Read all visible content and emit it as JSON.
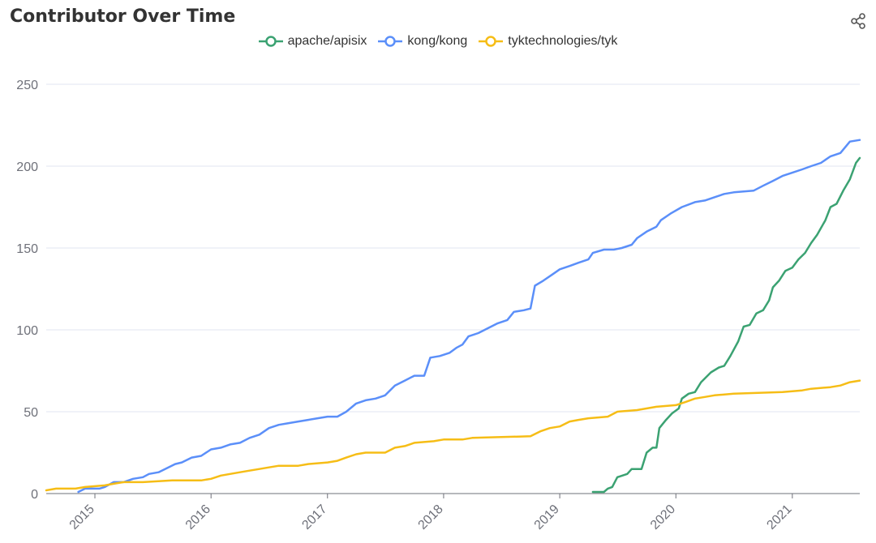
{
  "title": "Contributor Over Time",
  "share_icon": "share-icon",
  "chart_data": {
    "type": "line",
    "title": "Contributor Over Time",
    "xlabel": "",
    "ylabel": "",
    "ylim": [
      0,
      250
    ],
    "xlim": [
      "2014-08-01",
      "2021-08-01"
    ],
    "yticks": [
      0,
      50,
      100,
      150,
      200,
      250
    ],
    "xticks": [
      "2015",
      "2016",
      "2017",
      "2018",
      "2019",
      "2020",
      "2021"
    ],
    "grid": true,
    "legend_position": "top-center",
    "series": [
      {
        "name": "apache/apisix",
        "color": "#3ba272",
        "points": [
          [
            "2019-04-15",
            1
          ],
          [
            "2019-05-20",
            1
          ],
          [
            "2019-06-01",
            3
          ],
          [
            "2019-06-15",
            4
          ],
          [
            "2019-07-01",
            10
          ],
          [
            "2019-08-01",
            12
          ],
          [
            "2019-08-15",
            15
          ],
          [
            "2019-09-15",
            15
          ],
          [
            "2019-10-01",
            25
          ],
          [
            "2019-10-20",
            28
          ],
          [
            "2019-11-01",
            28
          ],
          [
            "2019-11-10",
            40
          ],
          [
            "2019-12-01",
            45
          ],
          [
            "2019-12-20",
            49
          ],
          [
            "2020-01-10",
            52
          ],
          [
            "2020-01-20",
            58
          ],
          [
            "2020-02-10",
            61
          ],
          [
            "2020-03-01",
            62
          ],
          [
            "2020-03-20",
            68
          ],
          [
            "2020-04-20",
            74
          ],
          [
            "2020-05-15",
            77
          ],
          [
            "2020-06-01",
            78
          ],
          [
            "2020-06-20",
            84
          ],
          [
            "2020-07-15",
            93
          ],
          [
            "2020-08-01",
            102
          ],
          [
            "2020-08-20",
            103
          ],
          [
            "2020-09-10",
            110
          ],
          [
            "2020-10-01",
            112
          ],
          [
            "2020-10-20",
            118
          ],
          [
            "2020-11-01",
            126
          ],
          [
            "2020-11-20",
            130
          ],
          [
            "2020-12-10",
            136
          ],
          [
            "2021-01-01",
            138
          ],
          [
            "2021-01-20",
            143
          ],
          [
            "2021-02-10",
            147
          ],
          [
            "2021-03-01",
            153
          ],
          [
            "2021-03-20",
            158
          ],
          [
            "2021-04-15",
            167
          ],
          [
            "2021-05-01",
            175
          ],
          [
            "2021-05-20",
            177
          ],
          [
            "2021-06-10",
            185
          ],
          [
            "2021-07-01",
            192
          ],
          [
            "2021-07-20",
            202
          ],
          [
            "2021-08-01",
            205
          ]
        ]
      },
      {
        "name": "kong/kong",
        "color": "#5b8ff9",
        "points": [
          [
            "2014-11-10",
            1
          ],
          [
            "2014-12-01",
            3
          ],
          [
            "2015-01-15",
            3
          ],
          [
            "2015-02-01",
            4
          ],
          [
            "2015-03-01",
            7
          ],
          [
            "2015-04-01",
            7
          ],
          [
            "2015-05-01",
            9
          ],
          [
            "2015-06-01",
            10
          ],
          [
            "2015-06-20",
            12
          ],
          [
            "2015-07-20",
            13
          ],
          [
            "2015-08-20",
            16
          ],
          [
            "2015-09-10",
            18
          ],
          [
            "2015-10-01",
            19
          ],
          [
            "2015-11-01",
            22
          ],
          [
            "2015-12-01",
            23
          ],
          [
            "2016-01-01",
            27
          ],
          [
            "2016-02-01",
            28
          ],
          [
            "2016-03-01",
            30
          ],
          [
            "2016-04-01",
            31
          ],
          [
            "2016-05-01",
            34
          ],
          [
            "2016-06-01",
            36
          ],
          [
            "2016-07-01",
            40
          ],
          [
            "2016-08-01",
            42
          ],
          [
            "2016-09-01",
            43
          ],
          [
            "2016-10-01",
            44
          ],
          [
            "2016-11-01",
            45
          ],
          [
            "2016-12-01",
            46
          ],
          [
            "2017-01-01",
            47
          ],
          [
            "2017-02-01",
            47
          ],
          [
            "2017-03-01",
            50
          ],
          [
            "2017-04-01",
            55
          ],
          [
            "2017-05-01",
            57
          ],
          [
            "2017-06-01",
            58
          ],
          [
            "2017-07-01",
            60
          ],
          [
            "2017-08-01",
            66
          ],
          [
            "2017-09-01",
            69
          ],
          [
            "2017-10-01",
            72
          ],
          [
            "2017-11-01",
            72
          ],
          [
            "2017-11-20",
            83
          ],
          [
            "2017-12-20",
            84
          ],
          [
            "2018-01-20",
            86
          ],
          [
            "2018-02-10",
            89
          ],
          [
            "2018-03-01",
            91
          ],
          [
            "2018-03-20",
            96
          ],
          [
            "2018-04-20",
            98
          ],
          [
            "2018-05-20",
            101
          ],
          [
            "2018-06-20",
            104
          ],
          [
            "2018-07-20",
            106
          ],
          [
            "2018-08-10",
            111
          ],
          [
            "2018-09-10",
            112
          ],
          [
            "2018-10-01",
            113
          ],
          [
            "2018-10-15",
            127
          ],
          [
            "2018-11-10",
            130
          ],
          [
            "2018-12-10",
            134
          ],
          [
            "2019-01-01",
            137
          ],
          [
            "2019-02-01",
            139
          ],
          [
            "2019-03-01",
            141
          ],
          [
            "2019-04-01",
            143
          ],
          [
            "2019-04-15",
            147
          ],
          [
            "2019-05-20",
            149
          ],
          [
            "2019-06-20",
            149
          ],
          [
            "2019-07-15",
            150
          ],
          [
            "2019-08-15",
            152
          ],
          [
            "2019-09-01",
            156
          ],
          [
            "2019-10-01",
            160
          ],
          [
            "2019-11-01",
            163
          ],
          [
            "2019-11-15",
            167
          ],
          [
            "2019-12-15",
            171
          ],
          [
            "2020-01-20",
            175
          ],
          [
            "2020-03-01",
            178
          ],
          [
            "2020-04-01",
            179
          ],
          [
            "2020-05-01",
            181
          ],
          [
            "2020-06-01",
            183
          ],
          [
            "2020-07-01",
            184
          ],
          [
            "2020-09-01",
            185
          ],
          [
            "2020-10-01",
            188
          ],
          [
            "2020-11-01",
            191
          ],
          [
            "2020-12-01",
            194
          ],
          [
            "2021-01-01",
            196
          ],
          [
            "2021-02-01",
            198
          ],
          [
            "2021-03-01",
            200
          ],
          [
            "2021-04-01",
            202
          ],
          [
            "2021-05-01",
            206
          ],
          [
            "2021-06-01",
            208
          ],
          [
            "2021-07-01",
            215
          ],
          [
            "2021-08-01",
            216
          ]
        ]
      },
      {
        "name": "tyktechnologies/tyk",
        "color": "#f6bd16",
        "points": [
          [
            "2014-08-01",
            2
          ],
          [
            "2014-09-01",
            3
          ],
          [
            "2014-11-01",
            3
          ],
          [
            "2014-12-01",
            4
          ],
          [
            "2015-02-01",
            5
          ],
          [
            "2015-03-01",
            6
          ],
          [
            "2015-04-01",
            7
          ],
          [
            "2015-06-01",
            7
          ],
          [
            "2015-09-01",
            8
          ],
          [
            "2015-12-01",
            8
          ],
          [
            "2016-01-01",
            9
          ],
          [
            "2016-02-01",
            11
          ],
          [
            "2016-03-01",
            12
          ],
          [
            "2016-04-01",
            13
          ],
          [
            "2016-05-01",
            14
          ],
          [
            "2016-06-01",
            15
          ],
          [
            "2016-07-01",
            16
          ],
          [
            "2016-08-01",
            17
          ],
          [
            "2016-10-01",
            17
          ],
          [
            "2016-11-01",
            18
          ],
          [
            "2017-01-01",
            19
          ],
          [
            "2017-02-01",
            20
          ],
          [
            "2017-03-01",
            22
          ],
          [
            "2017-04-01",
            24
          ],
          [
            "2017-05-01",
            25
          ],
          [
            "2017-07-01",
            25
          ],
          [
            "2017-08-01",
            28
          ],
          [
            "2017-09-01",
            29
          ],
          [
            "2017-10-01",
            31
          ],
          [
            "2017-12-01",
            32
          ],
          [
            "2018-01-01",
            33
          ],
          [
            "2018-03-01",
            33
          ],
          [
            "2018-04-01",
            34
          ],
          [
            "2018-10-01",
            35
          ],
          [
            "2018-11-01",
            38
          ],
          [
            "2018-12-01",
            40
          ],
          [
            "2019-01-01",
            41
          ],
          [
            "2019-02-01",
            44
          ],
          [
            "2019-03-01",
            45
          ],
          [
            "2019-04-01",
            46
          ],
          [
            "2019-06-01",
            47
          ],
          [
            "2019-07-01",
            50
          ],
          [
            "2019-09-01",
            51
          ],
          [
            "2019-11-01",
            53
          ],
          [
            "2020-01-01",
            54
          ],
          [
            "2020-02-01",
            56
          ],
          [
            "2020-03-01",
            58
          ],
          [
            "2020-04-01",
            59
          ],
          [
            "2020-05-01",
            60
          ],
          [
            "2020-07-01",
            61
          ],
          [
            "2020-12-01",
            62
          ],
          [
            "2021-02-01",
            63
          ],
          [
            "2021-03-01",
            64
          ],
          [
            "2021-05-01",
            65
          ],
          [
            "2021-06-01",
            66
          ],
          [
            "2021-07-01",
            68
          ],
          [
            "2021-08-01",
            69
          ]
        ]
      }
    ]
  }
}
